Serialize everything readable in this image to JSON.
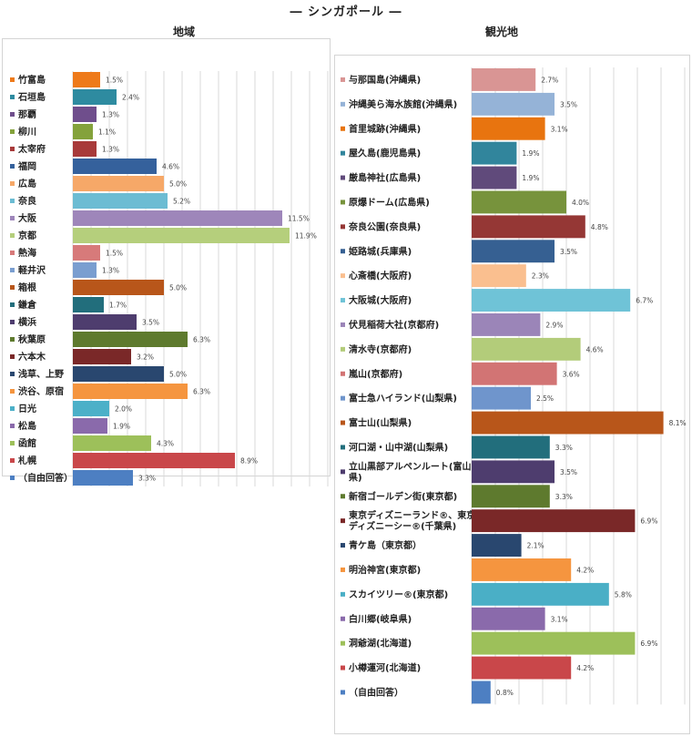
{
  "main_title": "― シンガポール ―",
  "chart_data": [
    {
      "type": "bar",
      "orientation": "horizontal",
      "title": "地域",
      "xlim": [
        0,
        14
      ],
      "grid": true,
      "categories": [
        "竹富島",
        "石垣島",
        "那覇",
        "柳川",
        "太宰府",
        "福岡",
        "広島",
        "奈良",
        "大阪",
        "京都",
        "熱海",
        "軽井沢",
        "箱根",
        "鎌倉",
        "横浜",
        "秋葉原",
        "六本木",
        "浅草、上野",
        "渋谷、原宿",
        "日光",
        "松島",
        "函館",
        "札幌",
        "（自由回答）"
      ],
      "values": [
        1.5,
        2.4,
        1.3,
        1.1,
        1.3,
        4.6,
        5.0,
        5.2,
        11.5,
        11.9,
        1.5,
        1.3,
        5.0,
        1.7,
        3.5,
        6.3,
        3.2,
        5.0,
        6.3,
        2.0,
        1.9,
        4.3,
        8.9,
        3.3
      ],
      "labels": [
        "1.5%",
        "2.4%",
        "1.3%",
        "1.1%",
        "1.3%",
        "4.6%",
        "5.0%",
        "5.2%",
        "11.5%",
        "11.9%",
        "1.5%",
        "1.3%",
        "5.0%",
        "1.7%",
        "3.5%",
        "6.3%",
        "3.2%",
        "5.0%",
        "6.3%",
        "2.0%",
        "1.9%",
        "4.3%",
        "8.9%",
        "3.3%"
      ],
      "colors": [
        "#ee7a1a",
        "#2e8ba0",
        "#6f4e8c",
        "#84a23b",
        "#a83a3a",
        "#35619c",
        "#f6a868",
        "#6cbcd3",
        "#9e86ba",
        "#b5cf7c",
        "#d77a7a",
        "#7a9ed0",
        "#b8561a",
        "#226e7c",
        "#4e3d6e",
        "#5e7a2e",
        "#7a2828",
        "#29476f",
        "#f5953f",
        "#4cb0c8",
        "#8a6aab",
        "#9dc05a",
        "#c9474a",
        "#4d7fc2"
      ]
    },
    {
      "type": "bar",
      "orientation": "horizontal",
      "title": "観光地",
      "xlim": [
        0,
        9
      ],
      "grid": true,
      "categories": [
        "与那国島(沖縄県)",
        "沖縄美ら海水族館(沖縄県)",
        "首里城跡(沖縄県)",
        "屋久島(鹿児島県)",
        "厳島神社(広島県)",
        "原爆ドーム(広島県)",
        "奈良公園(奈良県)",
        "姫路城(兵庫県)",
        "心斎橋(大阪府)",
        "大阪城(大阪府)",
        "伏見稲荷大社(京都府)",
        "清水寺(京都府)",
        "嵐山(京都府)",
        "富士急ハイランド(山梨県)",
        "富士山(山梨県)",
        "河口湖・山中湖(山梨県)",
        "立山黒部アルペンルート(富山県)",
        "新宿ゴールデン街(東京都)",
        "東京ディズニーランド®、東京ディズニーシー®(千葉県)",
        "青ケ島（東京都）",
        "明治神宮(東京都)",
        "スカイツリー®(東京都)",
        "白川郷(岐阜県)",
        "洞爺湖(北海道)",
        "小樽運河(北海道)",
        "（自由回答）"
      ],
      "values": [
        2.7,
        3.5,
        3.1,
        1.9,
        1.9,
        4.0,
        4.8,
        3.5,
        2.3,
        6.7,
        2.9,
        4.6,
        3.6,
        2.5,
        8.1,
        3.3,
        3.5,
        3.3,
        6.9,
        2.1,
        4.2,
        5.8,
        3.1,
        6.9,
        4.2,
        0.8
      ],
      "labels": [
        "2.7%",
        "3.5%",
        "3.1%",
        "1.9%",
        "1.9%",
        "4.0%",
        "4.8%",
        "3.5%",
        "2.3%",
        "6.7%",
        "2.9%",
        "4.6%",
        "3.6%",
        "2.5%",
        "8.1%",
        "3.3%",
        "3.5%",
        "3.3%",
        "6.9%",
        "2.1%",
        "4.2%",
        "5.8%",
        "3.1%",
        "6.9%",
        "4.2%",
        "0.8%"
      ],
      "colors": [
        "#d99594",
        "#95b3d7",
        "#e8740f",
        "#31859c",
        "#604a7b",
        "#77933c",
        "#953735",
        "#366092",
        "#fabf8f",
        "#6fc3d7",
        "#9b85b8",
        "#b3cc7a",
        "#d27474",
        "#6f95cc",
        "#b8561a",
        "#226e7c",
        "#4e3d6e",
        "#5e7a2e",
        "#7a2828",
        "#29476f",
        "#f5953f",
        "#4aafc6",
        "#8a6aab",
        "#9dc05a",
        "#c9474a",
        "#4d7fc2"
      ]
    }
  ]
}
